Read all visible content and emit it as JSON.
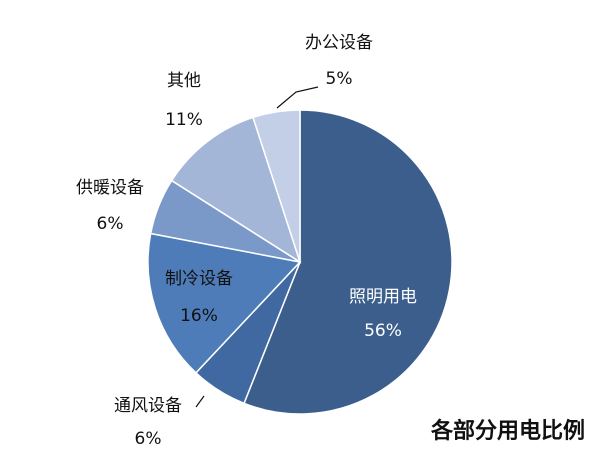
{
  "chart_data": {
    "type": "pie",
    "title": "各部分用电比例",
    "slices": [
      {
        "name": "照明用电",
        "value": 56,
        "label": "56%",
        "color": "#3B5E8C"
      },
      {
        "name": "通风设备",
        "value": 6,
        "label": "6%",
        "color": "#4169A1"
      },
      {
        "name": "制冷设备",
        "value": 16,
        "label": "16%",
        "color": "#4E7CB9"
      },
      {
        "name": "供暖设备",
        "value": 6,
        "label": "6%",
        "color": "#7A98C8"
      },
      {
        "name": "其他",
        "value": 11,
        "label": "11%",
        "color": "#A3B6D8"
      },
      {
        "name": "办公设备",
        "value": 5,
        "label": "5%",
        "color": "#C3CFE6"
      }
    ],
    "legend": "none"
  }
}
